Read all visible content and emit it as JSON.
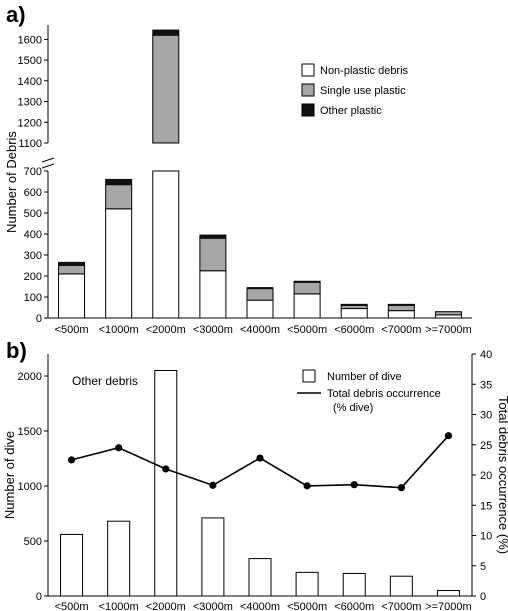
{
  "chart_data": [
    {
      "type": "bar",
      "panel_label": "a)",
      "stacked": true,
      "ylabel": "Number of Debris",
      "xlabel": "",
      "axis_break": true,
      "ylim_lower": [
        0,
        700
      ],
      "ylim_upper": [
        1100,
        1650
      ],
      "yticks": [
        0,
        100,
        200,
        300,
        400,
        500,
        600,
        700,
        1100,
        1200,
        1300,
        1400,
        1500,
        1600
      ],
      "categories": [
        "<500m",
        "<1000m",
        "<2000m",
        "<3000m",
        "<4000m",
        "<5000m",
        "<6000m",
        "<7000m",
        ">=7000m"
      ],
      "series": [
        {
          "name": "Non-plastic debris",
          "color": "#ffffff",
          "values": [
            210,
            520,
            1060,
            225,
            85,
            115,
            45,
            35,
            15
          ]
        },
        {
          "name": "Single use plastic",
          "color": "#a6a6a6",
          "values": [
            40,
            115,
            560,
            155,
            55,
            55,
            15,
            25,
            15
          ]
        },
        {
          "name": "Other plastic",
          "color": "#111111",
          "values": [
            15,
            25,
            25,
            15,
            5,
            5,
            5,
            5,
            0
          ]
        }
      ],
      "legend_position": "top-right",
      "grid": false
    },
    {
      "type": "bar+line",
      "panel_label": "b)",
      "annotation": "Other debris",
      "ylabel": "Number of dive",
      "y2label": "Total debris occurrence (%)",
      "xlabel": "",
      "ylim": [
        0,
        2200
      ],
      "y2lim": [
        0,
        40
      ],
      "yticks": [
        0,
        500,
        1000,
        1500,
        2000
      ],
      "y2ticks": [
        0,
        5,
        10,
        15,
        20,
        25,
        30,
        35,
        40
      ],
      "categories": [
        "<500m",
        "<1000m",
        "<2000m",
        "<3000m",
        "<4000m",
        "<5000m",
        "<6000m",
        "<7000m",
        ">=7000m"
      ],
      "series": [
        {
          "name": "Number of dive",
          "kind": "bar",
          "axis": "left",
          "values": [
            560,
            680,
            2050,
            710,
            340,
            215,
            205,
            180,
            50
          ]
        },
        {
          "name": "Total debris occurrence\n(% dive)",
          "kind": "line",
          "axis": "right",
          "values": [
            22.5,
            24.5,
            21.0,
            18.3,
            22.8,
            18.2,
            18.4,
            17.9,
            26.5
          ]
        }
      ],
      "legend_position": "top-right",
      "grid": false
    }
  ]
}
